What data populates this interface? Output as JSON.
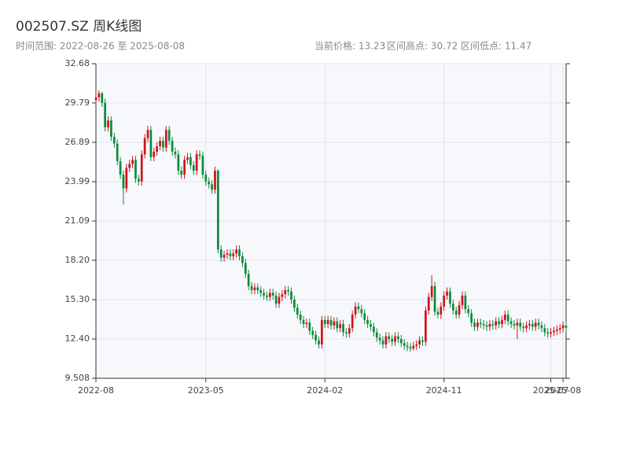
{
  "chart_data": {
    "type": "candlestick",
    "title": "002507.SZ 周K线图",
    "subtitle": "时间范围: 2022-08-26 至 2025-08-08",
    "info": [
      "当前价格: 13.23",
      "区间高点: 30.72",
      "区间低点: 11.47"
    ],
    "x": [
      "2022-08",
      "2022-09",
      "2022-09",
      "2022-09",
      "2022-09",
      "2022-09",
      "2022-10",
      "2022-10",
      "2022-10",
      "2022-10",
      "2022-11",
      "2022-11",
      "2022-11",
      "2022-11",
      "2022-12",
      "2022-12",
      "2022-12",
      "2022-12",
      "2022-12",
      "2023-01",
      "2023-01",
      "2023-01",
      "2023-01",
      "2023-02",
      "2023-02",
      "2023-02",
      "2023-02",
      "2023-03",
      "2023-03",
      "2023-03",
      "2023-03",
      "2023-03",
      "2023-04",
      "2023-04",
      "2023-04",
      "2023-04",
      "2023-05",
      "2023-05",
      "2023-05",
      "2023-05",
      "2023-06",
      "2023-06",
      "2023-06",
      "2023-06",
      "2023-06",
      "2023-07",
      "2023-07",
      "2023-07",
      "2023-07",
      "2023-08",
      "2023-08",
      "2023-08",
      "2023-08",
      "2023-09",
      "2023-09",
      "2023-09",
      "2023-09",
      "2023-09",
      "2023-10",
      "2023-10",
      "2023-10",
      "2023-10",
      "2023-11",
      "2023-11",
      "2023-11",
      "2023-11",
      "2023-12",
      "2023-12",
      "2023-12",
      "2023-12",
      "2023-12",
      "2024-01",
      "2024-01",
      "2024-01",
      "2024-01",
      "2024-02",
      "2024-02",
      "2024-02",
      "2024-02",
      "2024-03",
      "2024-03",
      "2024-03",
      "2024-03",
      "2024-03",
      "2024-04",
      "2024-04",
      "2024-04",
      "2024-04",
      "2024-05",
      "2024-05",
      "2024-05",
      "2024-05",
      "2024-05",
      "2024-06",
      "2024-06",
      "2024-06",
      "2024-06",
      "2024-07",
      "2024-07",
      "2024-07",
      "2024-07",
      "2024-08",
      "2024-08",
      "2024-08",
      "2024-08",
      "2024-08",
      "2024-09",
      "2024-09",
      "2024-09",
      "2024-09",
      "2024-10",
      "2024-10",
      "2024-10",
      "2024-10",
      "2024-11",
      "2024-11",
      "2024-11",
      "2024-11",
      "2024-11",
      "2024-12",
      "2024-12",
      "2024-12",
      "2024-12",
      "2025-01",
      "2025-01",
      "2025-01",
      "2025-01",
      "2025-01",
      "2025-02",
      "2025-02",
      "2025-02",
      "2025-02",
      "2025-03",
      "2025-03",
      "2025-03",
      "2025-03",
      "2025-04",
      "2025-04",
      "2025-04",
      "2025-04",
      "2025-05",
      "2025-05",
      "2025-05",
      "2025-05",
      "2025-05",
      "2025-06",
      "2025-06",
      "2025-06",
      "2025-06",
      "2025-07",
      "2025-07",
      "2025-07",
      "2025-07",
      "2025-08",
      "2025-08"
    ],
    "open": [
      30.0,
      30.2,
      30.5,
      29.8,
      28.0,
      28.5,
      27.3,
      26.8,
      25.5,
      24.5,
      23.5,
      25.0,
      25.3,
      25.6,
      24.2,
      24.0,
      26.0,
      27.2,
      27.8,
      25.8,
      26.2,
      26.6,
      27.0,
      26.5,
      27.8,
      27.0,
      26.2,
      26.0,
      24.8,
      24.5,
      25.6,
      25.8,
      25.2,
      24.8,
      26.0,
      25.9,
      24.5,
      24.0,
      23.8,
      23.4,
      24.8,
      19.0,
      18.4,
      18.6,
      18.7,
      18.5,
      18.7,
      19.0,
      18.5,
      18.0,
      17.2,
      16.3,
      16.0,
      16.2,
      16.0,
      15.8,
      15.6,
      15.5,
      15.8,
      15.6,
      15.0,
      15.5,
      15.7,
      16.0,
      15.9,
      15.3,
      14.7,
      14.2,
      13.8,
      13.5,
      13.6,
      13.0,
      12.7,
      12.3,
      12.0,
      13.8,
      13.5,
      13.8,
      13.4,
      13.7,
      13.2,
      13.5,
      12.9,
      12.8,
      13.2,
      14.2,
      14.8,
      14.6,
      14.3,
      13.8,
      13.5,
      13.3,
      12.9,
      12.5,
      12.3,
      12.0,
      12.6,
      12.4,
      12.2,
      12.6,
      12.4,
      12.1,
      11.9,
      11.8,
      11.7,
      11.9,
      12.0,
      12.3,
      12.2,
      14.5,
      15.5,
      16.3,
      14.4,
      14.2,
      14.8,
      15.6,
      15.9,
      15.0,
      14.5,
      14.2,
      14.9,
      15.6,
      14.6,
      14.3,
      13.6,
      13.3,
      13.6,
      13.5,
      13.4,
      13.3,
      13.5,
      13.4,
      13.7,
      13.5,
      13.8,
      14.2,
      13.7,
      13.5,
      13.4,
      13.6,
      13.3,
      13.2,
      13.4,
      13.5,
      13.3,
      13.6,
      13.4,
      13.2,
      12.9,
      12.8,
      12.9,
      13.0,
      13.1,
      13.2,
      13.4
    ],
    "high": [
      30.5,
      30.72,
      30.6,
      30.1,
      28.8,
      28.8,
      27.6,
      27.1,
      25.8,
      24.8,
      25.3,
      25.6,
      25.9,
      25.9,
      24.5,
      26.3,
      27.5,
      28.1,
      28.1,
      26.5,
      26.9,
      27.3,
      27.3,
      28.1,
      28.1,
      27.3,
      26.5,
      26.3,
      25.1,
      25.9,
      26.1,
      26.1,
      25.5,
      26.3,
      26.3,
      26.2,
      24.8,
      24.3,
      24.1,
      25.1,
      24.9,
      19.3,
      18.9,
      19.0,
      19.0,
      19.0,
      19.3,
      19.3,
      18.8,
      18.3,
      17.5,
      16.6,
      16.5,
      16.5,
      16.3,
      16.1,
      15.9,
      16.1,
      16.1,
      15.9,
      15.8,
      16.0,
      16.3,
      16.3,
      16.2,
      15.6,
      15.0,
      14.5,
      14.1,
      13.9,
      13.9,
      13.3,
      13.0,
      12.6,
      14.1,
      14.1,
      14.1,
      14.1,
      14.0,
      14.0,
      13.8,
      13.8,
      13.2,
      13.5,
      14.5,
      15.1,
      15.1,
      14.9,
      14.6,
      14.1,
      13.8,
      13.6,
      13.2,
      12.8,
      12.6,
      12.9,
      12.9,
      12.7,
      12.9,
      12.9,
      12.7,
      12.4,
      12.2,
      12.1,
      12.2,
      12.3,
      12.6,
      12.6,
      14.8,
      15.8,
      17.1,
      16.6,
      14.7,
      15.1,
      15.9,
      16.2,
      16.2,
      15.3,
      14.8,
      15.2,
      15.9,
      15.9,
      14.9,
      14.6,
      13.9,
      13.9,
      13.9,
      13.8,
      13.7,
      13.8,
      13.8,
      14.0,
      14.0,
      14.1,
      14.5,
      14.5,
      14.0,
      13.8,
      13.9,
      13.9,
      13.6,
      13.7,
      13.8,
      13.8,
      13.9,
      13.9,
      13.7,
      13.5,
      13.2,
      13.2,
      13.3,
      13.4,
      13.5,
      13.7,
      13.7
    ],
    "low": [
      29.7,
      29.9,
      29.5,
      27.7,
      27.7,
      27.0,
      26.5,
      25.2,
      24.2,
      22.3,
      23.2,
      24.7,
      25.0,
      23.9,
      23.7,
      23.7,
      25.7,
      26.9,
      25.5,
      25.5,
      25.9,
      26.3,
      26.2,
      26.2,
      26.7,
      25.9,
      25.7,
      24.5,
      24.2,
      24.2,
      25.3,
      24.9,
      24.5,
      24.5,
      25.6,
      24.2,
      23.7,
      23.5,
      23.1,
      23.1,
      18.7,
      18.1,
      18.1,
      18.3,
      18.2,
      18.2,
      18.4,
      18.2,
      17.7,
      16.9,
      16.0,
      15.7,
      15.7,
      15.7,
      15.5,
      15.3,
      15.2,
      15.2,
      15.3,
      14.7,
      14.7,
      15.2,
      15.4,
      15.6,
      15.0,
      14.4,
      13.9,
      13.5,
      13.2,
      13.2,
      12.7,
      12.4,
      12.0,
      11.7,
      11.7,
      13.2,
      13.2,
      13.1,
      13.1,
      12.9,
      12.9,
      12.6,
      12.5,
      12.5,
      12.9,
      13.9,
      14.3,
      14.0,
      13.5,
      13.2,
      13.0,
      12.6,
      12.2,
      12.0,
      11.7,
      11.7,
      12.1,
      11.9,
      11.9,
      12.1,
      11.8,
      11.6,
      11.5,
      11.47,
      11.55,
      11.6,
      11.7,
      11.9,
      11.9,
      14.2,
      15.2,
      14.1,
      13.9,
      13.9,
      14.5,
      15.3,
      14.7,
      14.2,
      13.9,
      13.9,
      14.6,
      14.3,
      14.0,
      13.3,
      13.0,
      13.0,
      13.2,
      13.1,
      13.0,
      13.0,
      13.1,
      13.1,
      13.2,
      13.2,
      13.5,
      13.4,
      13.2,
      13.1,
      12.4,
      13.0,
      12.9,
      12.9,
      13.1,
      13.0,
      13.0,
      13.1,
      12.9,
      12.6,
      12.5,
      12.5,
      12.6,
      12.7,
      12.8,
      12.9,
      12.9
    ],
    "close": [
      30.2,
      30.5,
      29.8,
      28.0,
      28.5,
      27.3,
      26.8,
      25.5,
      24.5,
      23.5,
      25.0,
      25.3,
      25.6,
      24.2,
      24.0,
      26.0,
      27.2,
      27.8,
      25.8,
      26.2,
      26.6,
      27.0,
      26.5,
      27.8,
      27.0,
      26.2,
      26.0,
      24.8,
      24.5,
      25.6,
      25.8,
      25.2,
      24.8,
      26.0,
      25.9,
      24.5,
      24.0,
      23.8,
      23.4,
      24.8,
      19.0,
      18.4,
      18.6,
      18.7,
      18.5,
      18.7,
      19.0,
      18.5,
      18.0,
      17.2,
      16.3,
      16.0,
      16.2,
      16.0,
      15.8,
      15.6,
      15.5,
      15.8,
      15.6,
      15.0,
      15.5,
      15.7,
      16.0,
      15.9,
      15.3,
      14.7,
      14.2,
      13.8,
      13.5,
      13.6,
      13.0,
      12.7,
      12.3,
      12.0,
      13.8,
      13.5,
      13.8,
      13.4,
      13.7,
      13.2,
      13.5,
      12.9,
      12.8,
      13.2,
      14.2,
      14.8,
      14.6,
      14.3,
      13.8,
      13.5,
      13.3,
      12.9,
      12.5,
      12.3,
      12.0,
      12.6,
      12.4,
      12.2,
      12.6,
      12.4,
      12.1,
      11.9,
      11.8,
      11.7,
      11.9,
      12.0,
      12.3,
      12.2,
      14.5,
      15.5,
      16.3,
      14.4,
      14.2,
      14.8,
      15.6,
      15.9,
      15.0,
      14.5,
      14.2,
      14.9,
      15.6,
      14.6,
      14.3,
      13.6,
      13.3,
      13.6,
      13.5,
      13.4,
      13.3,
      13.5,
      13.4,
      13.7,
      13.5,
      13.8,
      14.2,
      13.7,
      13.5,
      13.4,
      13.6,
      13.3,
      13.2,
      13.4,
      13.5,
      13.3,
      13.6,
      13.4,
      13.2,
      12.9,
      12.8,
      12.9,
      13.0,
      13.1,
      13.2,
      13.4,
      13.23
    ],
    "up_color": "#d0121b",
    "down_color": "#0d8a3c",
    "ylim": [
      9.508,
      32.68
    ],
    "yticks": [
      9.508,
      {
        "value": 12.4,
        "label": "12.40"
      },
      {
        "value": 15.3,
        "label": "15.30"
      },
      {
        "value": 18.2,
        "label": "18.20"
      },
      21.09,
      23.99,
      26.89,
      29.79,
      32.68
    ],
    "xticks": [
      "2022-08",
      "2023-05",
      "2024-02",
      "2024-11",
      "2025-07",
      "2025-08"
    ],
    "grid": true
  }
}
